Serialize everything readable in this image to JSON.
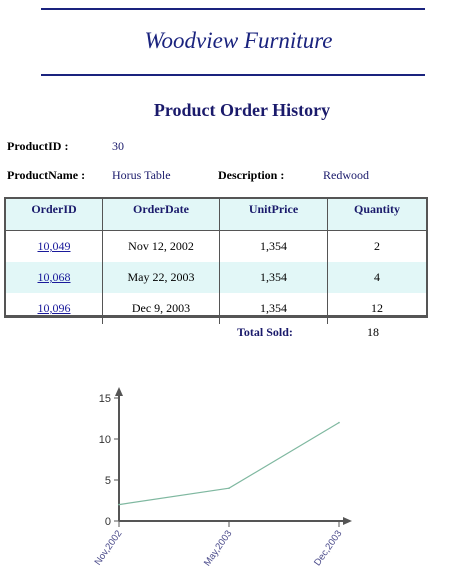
{
  "header": {
    "company": "Woodview Furniture",
    "report_title": "Product Order History"
  },
  "product": {
    "id_label": "ProductID :",
    "id_value": "30",
    "name_label": "ProductName :",
    "name_value": "Horus Table",
    "desc_label": "Description :",
    "desc_value": "Redwood"
  },
  "table": {
    "columns": [
      "OrderID",
      "OrderDate",
      "UnitPrice",
      "Quantity"
    ],
    "rows": [
      [
        "10,049",
        "Nov 12, 2002",
        "1,354",
        "2"
      ],
      [
        "10,068",
        "May 22, 2003",
        "1,354",
        "4"
      ],
      [
        "10,096",
        "Dec 9, 2003",
        "1,354",
        "12"
      ]
    ]
  },
  "totals": {
    "label": "Total Sold:",
    "value": "18"
  },
  "colors": {
    "accent": "#1a237e",
    "row_highlight": "#e2f7f7",
    "line": "#7fb8a0"
  },
  "chart_data": {
    "type": "line",
    "categories": [
      "Nov,2002",
      "May,2003",
      "Dec,2003"
    ],
    "values": [
      2,
      4,
      12
    ],
    "ylim": [
      0,
      15
    ],
    "yticks": [
      0,
      5,
      10,
      15
    ],
    "title": "",
    "xlabel": "",
    "ylabel": "",
    "grid": false
  }
}
